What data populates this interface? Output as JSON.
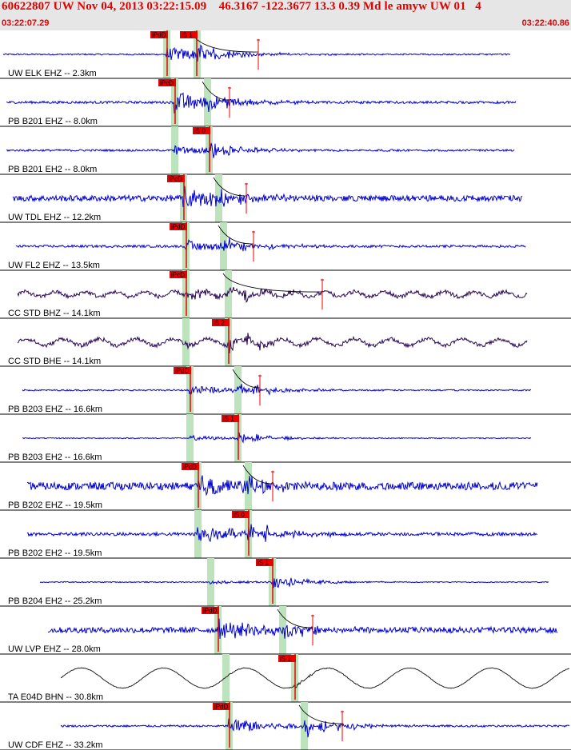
{
  "header": {
    "title": "60622807 UW Nov 04, 2013 03:22:15.09    46.3167 -122.3677 13.3 0.39 Md le amyw UW 01   4",
    "time_start": "03:22:07.29",
    "time_end": "03:22:40.86"
  },
  "colors": {
    "header_bg": "#e6e6e6",
    "header_text": "#e00000",
    "trace_blue": "#0000d0",
    "trace_dark": "#2a0a55",
    "trace_black": "#202020",
    "pick_red": "#ee0000",
    "shade_green": "#bde3bd"
  },
  "traces": [
    {
      "label": "UW ELK EHZ -- 2.3km",
      "color": "blue",
      "start": [
        4,
        0.0
      ],
      "end": [
        638,
        0.0
      ],
      "pamp": 0.3,
      "samp": 0.45,
      "wave": 0.0,
      "wavefreq": 0,
      "noise": 0.03,
      "greens": [
        208,
        246
      ],
      "picks": [
        {
          "text": "iPdD",
          "pos": 209
        },
        {
          "text": "iS 1",
          "pos": 246
        }
      ],
      "ticks": [
        323
      ]
    },
    {
      "label": "PB B201 EHZ -- 8.0km",
      "color": "blue",
      "start": [
        8,
        0.0
      ],
      "end": [
        645,
        0.0
      ],
      "pamp": 0.45,
      "samp": 0.35,
      "wave": 0.0,
      "wavefreq": 0,
      "noise": 0.05,
      "greens": [
        218,
        259
      ],
      "picks": [
        {
          "text": "iPcD",
          "pos": 219
        }
      ],
      "ticks": [
        287
      ]
    },
    {
      "label": "PB B201 EH2 -- 8.0km",
      "color": "blue",
      "start": [
        8,
        0.0
      ],
      "end": [
        643,
        0.0
      ],
      "pamp": 0.2,
      "samp": 0.35,
      "wave": 0.0,
      "wavefreq": 0,
      "noise": 0.04,
      "greens": [
        218,
        261
      ],
      "picks": [
        {
          "text": "iS 0",
          "pos": 262
        }
      ],
      "ticks": []
    },
    {
      "label": "UW TDL EHZ -- 12.2km",
      "color": "blue",
      "start": [
        16,
        0.0
      ],
      "end": [
        653,
        0.0
      ],
      "pamp": 0.45,
      "samp": 0.3,
      "wave": 0.0,
      "wavefreq": 0,
      "noise": 0.12,
      "greens": [
        229,
        273
      ],
      "picks": [
        {
          "text": "iPcD",
          "pos": 230
        }
      ],
      "ticks": [
        308
      ]
    },
    {
      "label": "UW FL2 EHZ -- 13.5km",
      "color": "blue",
      "start": [
        20,
        0.0
      ],
      "end": [
        657,
        0.0
      ],
      "pamp": 0.25,
      "samp": 0.4,
      "wave": 0.0,
      "wavefreq": 0,
      "noise": 0.05,
      "greens": [
        232,
        279
      ],
      "picks": [
        {
          "text": "iPdD",
          "pos": 233
        }
      ],
      "ticks": [
        317
      ]
    },
    {
      "label": "CC STD BHZ -- 14.1km",
      "color": "dark",
      "start": [
        22,
        0.0
      ],
      "end": [
        659,
        0.0
      ],
      "pamp": 0.2,
      "samp": 0.35,
      "wave": 0.1,
      "wavefreq": 17,
      "noise": 0.08,
      "greens": [
        232,
        285
      ],
      "picks": [
        {
          "text": "iPcD",
          "pos": 233
        }
      ],
      "ticks": [
        403
      ]
    },
    {
      "label": "CC STD BHE -- 14.1km",
      "color": "dark",
      "start": [
        22,
        0.0
      ],
      "end": [
        659,
        0.0
      ],
      "pamp": 0.1,
      "samp": 0.45,
      "wave": 0.14,
      "wavefreq": 14,
      "noise": 0.08,
      "greens": [
        232,
        285
      ],
      "picks": [
        {
          "text": "iS 2",
          "pos": 286
        }
      ],
      "ticks": []
    },
    {
      "label": "PB B203 EHZ -- 16.6km",
      "color": "blue",
      "start": [
        28,
        0.0
      ],
      "end": [
        664,
        0.0
      ],
      "pamp": 0.2,
      "samp": 0.4,
      "wave": 0.0,
      "wavefreq": 0,
      "noise": 0.03,
      "greens": [
        237,
        297
      ],
      "picks": [
        {
          "text": "iPdD",
          "pos": 238
        }
      ],
      "ticks": [
        325
      ]
    },
    {
      "label": "PB B203 EH2 -- 16.6km",
      "color": "blue",
      "start": [
        28,
        0.0
      ],
      "end": [
        664,
        0.0
      ],
      "pamp": 0.1,
      "samp": 0.3,
      "wave": 0.0,
      "wavefreq": 0,
      "noise": 0.02,
      "greens": [
        237,
        297
      ],
      "picks": [
        {
          "text": "iS 1",
          "pos": 298
        }
      ],
      "ticks": []
    },
    {
      "label": "PB B202 EHZ -- 19.5km",
      "color": "blue",
      "start": [
        34,
        0.0
      ],
      "end": [
        672,
        0.0
      ],
      "pamp": 0.4,
      "samp": 0.4,
      "wave": 0.0,
      "wavefreq": 0,
      "noise": 0.16,
      "greens": [
        247,
        310
      ],
      "picks": [
        {
          "text": "iPcD",
          "pos": 248
        }
      ],
      "ticks": [
        341
      ]
    },
    {
      "label": "PB B202 EH2 -- 19.5km",
      "color": "blue",
      "start": [
        34,
        0.0
      ],
      "end": [
        672,
        0.0
      ],
      "pamp": 0.4,
      "samp": 0.45,
      "wave": 0.0,
      "wavefreq": 0,
      "noise": 0.07,
      "greens": [
        247,
        310
      ],
      "picks": [
        {
          "text": "iS 0",
          "pos": 311
        }
      ],
      "ticks": []
    },
    {
      "label": "PB B204 EH2 -- 25.2km",
      "color": "blue",
      "start": [
        50,
        0.0
      ],
      "end": [
        686,
        0.0
      ],
      "pamp": 0.08,
      "samp": 0.4,
      "wave": 0.0,
      "wavefreq": 0,
      "noise": 0.02,
      "greens": [
        263,
        340
      ],
      "picks": [
        {
          "text": "iS 1",
          "pos": 341
        }
      ],
      "ticks": []
    },
    {
      "label": "UW LVP EHZ -- 28.0km",
      "color": "blue",
      "start": [
        60,
        0.0
      ],
      "end": [
        697,
        0.0
      ],
      "pamp": 0.4,
      "samp": 0.45,
      "wave": 0.0,
      "wavefreq": 0,
      "noise": 0.12,
      "greens": [
        272,
        353
      ],
      "picks": [
        {
          "text": "iPdD",
          "pos": 273
        }
      ],
      "ticks": [
        391
      ]
    },
    {
      "label": "TA E04D BHN -- 30.8km",
      "color": "black",
      "start": [
        76,
        0.0
      ],
      "end": [
        712,
        0.0
      ],
      "pamp": 0.02,
      "samp": 0.1,
      "wave": 0.42,
      "wavefreq": 6.2,
      "noise": 0.01,
      "greens": [
        282,
        368
      ],
      "picks": [
        {
          "text": "iS 1",
          "pos": 369
        }
      ],
      "ticks": []
    },
    {
      "label": "UW CDF EHZ -- 33.2km",
      "color": "blue",
      "start": [
        76,
        0.0
      ],
      "end": [
        712,
        0.0
      ],
      "pamp": 0.35,
      "samp": 0.45,
      "wave": 0.0,
      "wavefreq": 0,
      "noise": 0.04,
      "greens": [
        286,
        380
      ],
      "picks": [
        {
          "text": "iPdD",
          "pos": 287
        }
      ],
      "ticks": [
        428
      ]
    }
  ]
}
